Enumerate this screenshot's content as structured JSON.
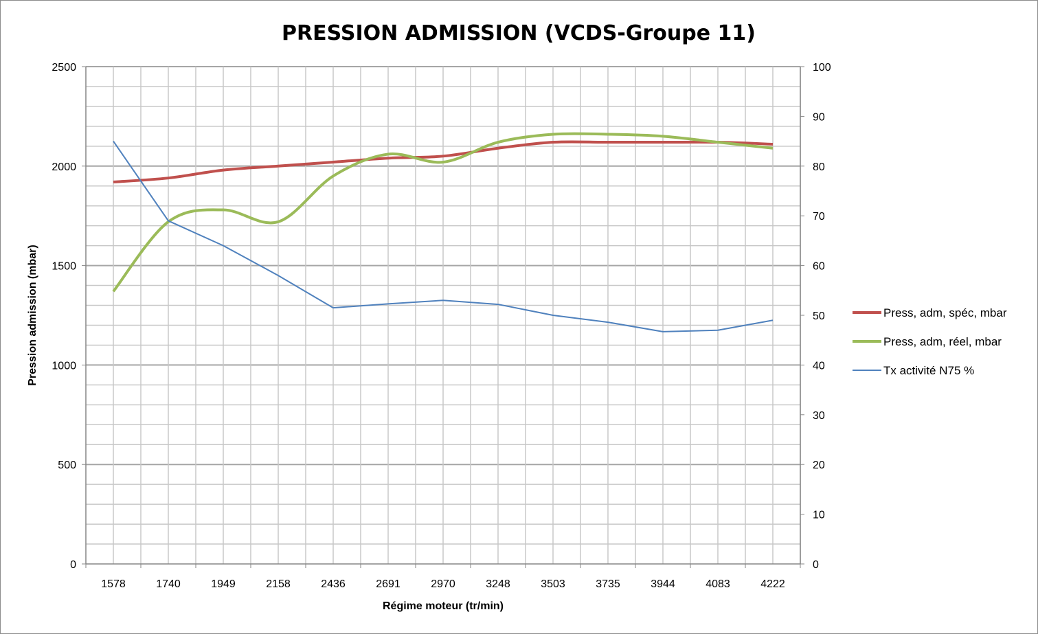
{
  "chart_data": {
    "type": "line",
    "title": "PRESSION ADMISSION (VCDS-Groupe 11)",
    "xlabel": "Régime moteur (tr/min)",
    "ylabel": "Pression admission (mbar)",
    "y2label": "",
    "categories": [
      "1578",
      "1740",
      "1949",
      "2158",
      "2436",
      "2691",
      "2970",
      "3248",
      "3503",
      "3735",
      "3944",
      "4083",
      "4222"
    ],
    "ylim": [
      0,
      2500
    ],
    "yticks": [
      "0",
      "500",
      "1000",
      "1500",
      "2000",
      "2500"
    ],
    "y2lim": [
      0,
      100
    ],
    "y2ticks": [
      "0",
      "10",
      "20",
      "30",
      "40",
      "50",
      "60",
      "70",
      "80",
      "90",
      "100"
    ],
    "grid": true,
    "legend_position": "right",
    "series": [
      {
        "name": "Press, adm, spéc, mbar",
        "axis": "left",
        "color": "#c0504d",
        "smooth": true,
        "values": [
          1920,
          1940,
          1980,
          2000,
          2020,
          2040,
          2050,
          2090,
          2120,
          2120,
          2120,
          2120,
          2110
        ]
      },
      {
        "name": "Press, adm, réel, mbar",
        "axis": "left",
        "color": "#9bbb59",
        "smooth": true,
        "values": [
          1370,
          1720,
          1780,
          1720,
          1950,
          2060,
          2020,
          2120,
          2160,
          2160,
          2150,
          2120,
          2090
        ]
      },
      {
        "name": "Tx activité N75 %",
        "axis": "right",
        "color": "#4f81bd",
        "smooth": false,
        "values": [
          85,
          69,
          64,
          58,
          51.5,
          52.3,
          53,
          52.2,
          50,
          48.6,
          46.7,
          47,
          49
        ]
      }
    ]
  }
}
